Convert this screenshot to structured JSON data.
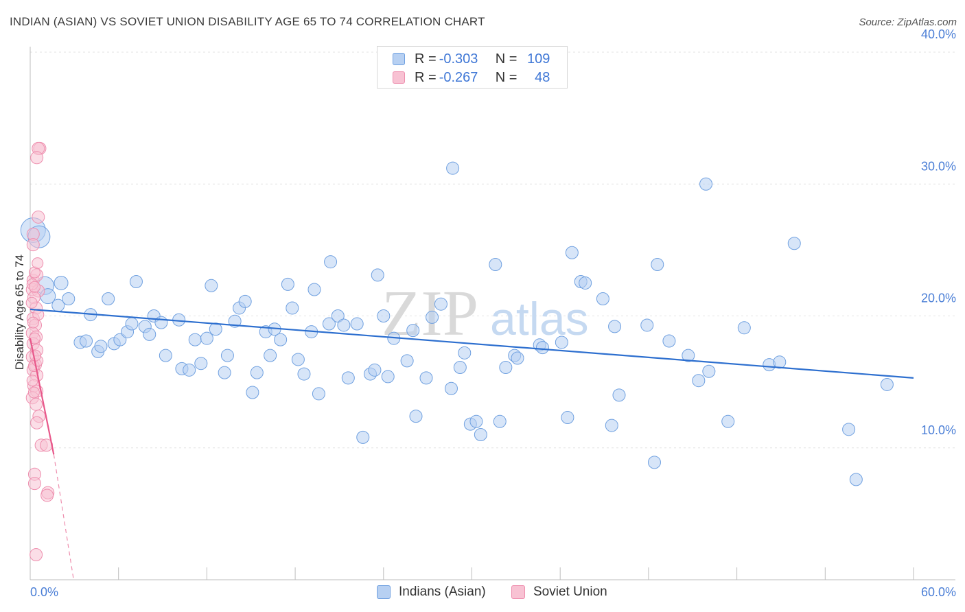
{
  "title": "INDIAN (ASIAN) VS SOVIET UNION DISABILITY AGE 65 TO 74 CORRELATION CHART",
  "source": "Source: ZipAtlas.com",
  "watermark": {
    "zip": "ZIP",
    "atlas": "atlas"
  },
  "legend": {
    "rows": [
      {
        "r_label": "R =",
        "r_value": "-0.303",
        "n_label": "N =",
        "n_value": "109",
        "color": "#6fa0e0",
        "fill": "#b7d0f2"
      },
      {
        "r_label": "R =",
        "r_value": "-0.267",
        "n_label": "N =",
        "n_value": "48",
        "color": "#ee8eae",
        "fill": "#f8c2d3"
      }
    ]
  },
  "bottom_legend": [
    {
      "label": "Indians (Asian)",
      "color": "#6fa0e0",
      "fill": "#b7d0f2"
    },
    {
      "label": "Soviet Union",
      "color": "#ee8eae",
      "fill": "#f8c2d3"
    }
  ],
  "chart_data": {
    "type": "scatter",
    "title": "INDIAN (ASIAN) VS SOVIET UNION DISABILITY AGE 65 TO 74 CORRELATION CHART",
    "xlabel": "",
    "ylabel": "Disability Age 65 to 74",
    "xlim": [
      0,
      60
    ],
    "ylim": [
      0,
      40
    ],
    "x_tick_labels": [
      {
        "value": 0,
        "label": "0.0%"
      },
      {
        "value": 60,
        "label": "60.0%"
      }
    ],
    "y_tick_labels": [
      {
        "value": 10,
        "label": "10.0%"
      },
      {
        "value": 20,
        "label": "20.0%"
      },
      {
        "value": 30,
        "label": "30.0%"
      },
      {
        "value": 40,
        "label": "40.0%"
      }
    ],
    "series": [
      {
        "name": "Indians (Asian)",
        "color": "#6fa0e0",
        "fill": "#b7d0f2",
        "trend": {
          "x0": 0,
          "y0": 20.5,
          "x1": 60,
          "y1": 15.3,
          "dashed_from": null
        },
        "points": [
          [
            0.2,
            26.5,
            18
          ],
          [
            0.6,
            26.0,
            16
          ],
          [
            1.0,
            22.3,
            13
          ],
          [
            1.2,
            21.5,
            11
          ],
          [
            2.1,
            22.5,
            10
          ],
          [
            1.9,
            20.8,
            9
          ],
          [
            2.6,
            21.3,
            9
          ],
          [
            4.1,
            20.1,
            9
          ],
          [
            5.3,
            21.3,
            9
          ],
          [
            7.2,
            22.6,
            9
          ],
          [
            3.4,
            18.0,
            9
          ],
          [
            3.8,
            18.1,
            9
          ],
          [
            4.6,
            17.3,
            9
          ],
          [
            4.8,
            17.7,
            9
          ],
          [
            5.7,
            17.9,
            9
          ],
          [
            6.1,
            18.2,
            9
          ],
          [
            6.6,
            18.8,
            9
          ],
          [
            6.9,
            19.4,
            9
          ],
          [
            7.8,
            19.2,
            9
          ],
          [
            8.1,
            18.6,
            9
          ],
          [
            8.4,
            20.0,
            9
          ],
          [
            8.9,
            19.5,
            9
          ],
          [
            9.2,
            17.0,
            9
          ],
          [
            10.1,
            19.7,
            9
          ],
          [
            10.3,
            16.0,
            9
          ],
          [
            10.8,
            15.9,
            9
          ],
          [
            11.2,
            18.2,
            9
          ],
          [
            11.6,
            16.4,
            9
          ],
          [
            12.0,
            18.3,
            9
          ],
          [
            12.3,
            22.3,
            9
          ],
          [
            12.6,
            19.0,
            9
          ],
          [
            13.2,
            15.7,
            9
          ],
          [
            13.4,
            17.0,
            9
          ],
          [
            13.9,
            19.6,
            9
          ],
          [
            14.2,
            20.6,
            9
          ],
          [
            14.6,
            21.1,
            9
          ],
          [
            15.1,
            14.2,
            9
          ],
          [
            15.4,
            15.7,
            9
          ],
          [
            16.0,
            18.8,
            9
          ],
          [
            16.3,
            17.0,
            9
          ],
          [
            16.6,
            19.0,
            9
          ],
          [
            17.0,
            18.2,
            9
          ],
          [
            17.5,
            22.4,
            9
          ],
          [
            17.8,
            20.6,
            9
          ],
          [
            18.2,
            16.7,
            9
          ],
          [
            18.6,
            15.6,
            9
          ],
          [
            19.1,
            18.8,
            9
          ],
          [
            19.3,
            22.0,
            9
          ],
          [
            19.6,
            14.1,
            9
          ],
          [
            20.3,
            19.4,
            9
          ],
          [
            20.4,
            24.1,
            9
          ],
          [
            20.9,
            20.0,
            9
          ],
          [
            21.3,
            19.3,
            9
          ],
          [
            21.6,
            15.3,
            9
          ],
          [
            22.2,
            19.4,
            9
          ],
          [
            22.6,
            10.8,
            9
          ],
          [
            23.1,
            15.6,
            9
          ],
          [
            23.4,
            15.9,
            9
          ],
          [
            23.6,
            23.1,
            9
          ],
          [
            24.0,
            20.0,
            9
          ],
          [
            24.3,
            15.4,
            9
          ],
          [
            24.7,
            18.3,
            9
          ],
          [
            25.6,
            16.6,
            9
          ],
          [
            26.0,
            18.9,
            9
          ],
          [
            26.2,
            12.4,
            9
          ],
          [
            26.9,
            15.3,
            9
          ],
          [
            27.3,
            19.9,
            9
          ],
          [
            27.9,
            20.9,
            9
          ],
          [
            28.6,
            14.5,
            9
          ],
          [
            28.7,
            31.2,
            9
          ],
          [
            29.2,
            16.1,
            9
          ],
          [
            29.5,
            17.2,
            9
          ],
          [
            29.9,
            11.8,
            9
          ],
          [
            30.3,
            12.0,
            9
          ],
          [
            30.6,
            11.0,
            9
          ],
          [
            31.6,
            23.9,
            9
          ],
          [
            31.9,
            12.0,
            9
          ],
          [
            32.3,
            16.1,
            9
          ],
          [
            32.9,
            17.0,
            9
          ],
          [
            33.1,
            16.8,
            9
          ],
          [
            34.6,
            17.8,
            9
          ],
          [
            34.8,
            17.6,
            9
          ],
          [
            36.1,
            18.0,
            9
          ],
          [
            36.5,
            12.3,
            9
          ],
          [
            36.8,
            24.8,
            9
          ],
          [
            37.4,
            22.6,
            9
          ],
          [
            37.7,
            22.5,
            9
          ],
          [
            38.9,
            21.3,
            9
          ],
          [
            39.7,
            19.2,
            9
          ],
          [
            39.5,
            11.7,
            9
          ],
          [
            40.0,
            14.0,
            9
          ],
          [
            41.9,
            19.3,
            9
          ],
          [
            42.4,
            8.9,
            9
          ],
          [
            42.6,
            23.9,
            9
          ],
          [
            43.4,
            18.1,
            9
          ],
          [
            44.7,
            17.0,
            9
          ],
          [
            45.4,
            15.1,
            9
          ],
          [
            46.1,
            15.8,
            9
          ],
          [
            45.9,
            30.0,
            9
          ],
          [
            47.4,
            12.0,
            9
          ],
          [
            48.5,
            19.1,
            9
          ],
          [
            50.2,
            16.3,
            9
          ],
          [
            50.9,
            16.5,
            9
          ],
          [
            51.9,
            25.5,
            9
          ],
          [
            55.6,
            11.4,
            9
          ],
          [
            56.1,
            7.6,
            9
          ],
          [
            58.2,
            14.8,
            9
          ]
        ]
      },
      {
        "name": "Soviet Union",
        "color": "#ee8eae",
        "fill": "#f8c2d3",
        "trend": {
          "x0": 0.0,
          "y0": 18.3,
          "x1": 1.6,
          "y1": 9.5,
          "dashed_to": {
            "x": 2.95,
            "y": 0.0
          }
        },
        "points": [
          [
            0.65,
            32.7,
            9
          ],
          [
            0.55,
            32.7,
            9
          ],
          [
            0.45,
            32.0,
            9
          ],
          [
            0.55,
            27.5,
            9
          ],
          [
            0.2,
            26.2,
            9
          ],
          [
            0.2,
            25.4,
            9
          ],
          [
            0.2,
            22.7,
            9
          ],
          [
            0.45,
            23.1,
            9
          ],
          [
            0.15,
            22.0,
            9
          ],
          [
            0.55,
            21.9,
            9
          ],
          [
            0.25,
            21.4,
            9
          ],
          [
            0.4,
            20.6,
            9
          ],
          [
            0.2,
            19.8,
            9
          ],
          [
            0.35,
            19.3,
            9
          ],
          [
            0.15,
            18.7,
            9
          ],
          [
            0.4,
            18.4,
            9
          ],
          [
            0.2,
            17.9,
            9
          ],
          [
            0.45,
            17.4,
            9
          ],
          [
            0.15,
            16.9,
            9
          ],
          [
            0.35,
            16.3,
            9
          ],
          [
            0.2,
            15.9,
            9
          ],
          [
            0.45,
            15.5,
            9
          ],
          [
            0.25,
            14.7,
            9
          ],
          [
            0.45,
            14.3,
            9
          ],
          [
            0.15,
            13.8,
            9
          ],
          [
            0.4,
            13.3,
            9
          ],
          [
            0.6,
            12.4,
            9
          ],
          [
            0.45,
            11.9,
            9
          ],
          [
            0.75,
            10.2,
            9
          ],
          [
            1.1,
            10.2,
            9
          ],
          [
            0.3,
            8.0,
            9
          ],
          [
            0.3,
            7.3,
            9
          ],
          [
            1.2,
            6.6,
            9
          ],
          [
            1.15,
            6.4,
            9
          ],
          [
            0.4,
            1.9,
            9
          ],
          [
            0.15,
            22.4,
            8
          ],
          [
            0.3,
            23.3,
            8
          ],
          [
            0.3,
            18.3,
            8
          ],
          [
            0.25,
            16.2,
            8
          ],
          [
            0.55,
            20.1,
            8
          ],
          [
            0.1,
            21.0,
            8
          ],
          [
            0.15,
            15.1,
            8
          ],
          [
            0.5,
            16.6,
            8
          ],
          [
            0.2,
            19.5,
            8
          ],
          [
            0.35,
            17.0,
            8
          ],
          [
            0.25,
            14.2,
            8
          ],
          [
            0.5,
            24.0,
            8
          ],
          [
            0.3,
            22.2,
            8
          ]
        ]
      }
    ]
  }
}
